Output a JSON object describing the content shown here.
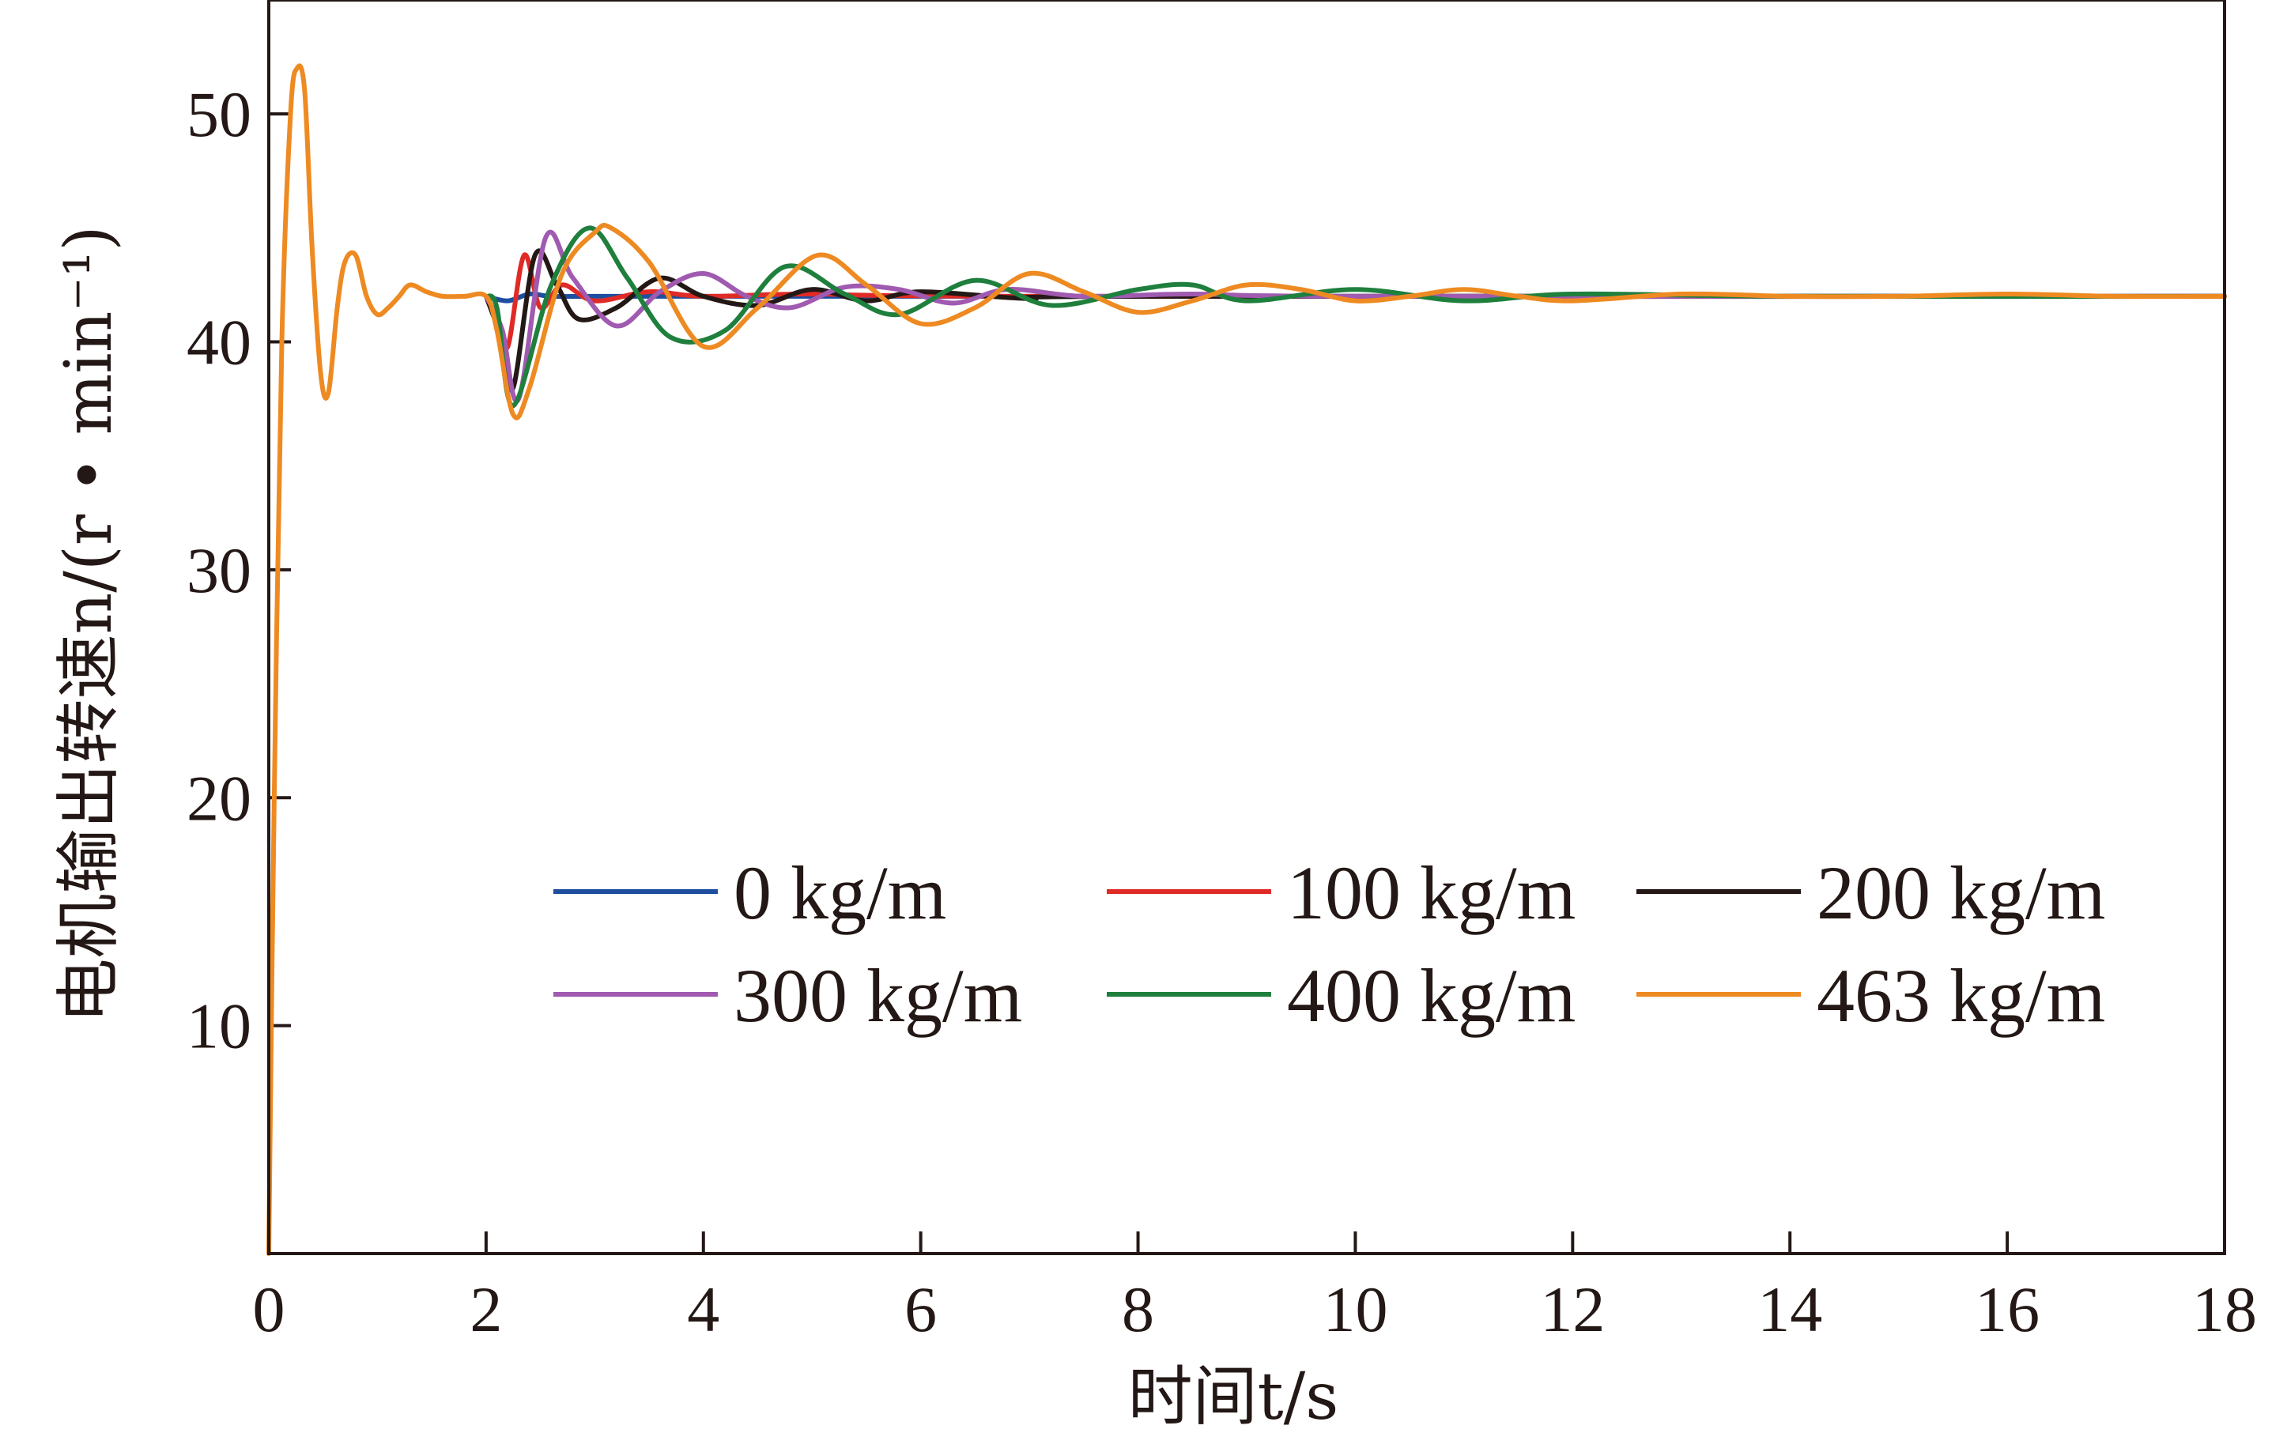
{
  "chart_data": {
    "type": "line",
    "xlabel": "时间t/s",
    "ylabel": "电机输出转速n/(r • min⁻¹)",
    "xlim": [
      0,
      18
    ],
    "ylim": [
      0,
      55
    ],
    "xticks": [
      0,
      2,
      4,
      6,
      8,
      10,
      12,
      14,
      16,
      18
    ],
    "yticks": [
      10,
      20,
      30,
      40,
      50
    ],
    "grid": false,
    "legend_position": "lower-middle, 3 columns",
    "series": [
      {
        "name": "0 kg/m",
        "color": "#1d4ea0",
        "x": [
          2.0,
          2.2,
          2.4,
          2.6,
          3.0,
          4.0,
          6.0,
          10.0,
          18.0
        ],
        "y": [
          42.0,
          41.8,
          42.1,
          42.0,
          42.0,
          42.0,
          42.0,
          42.0,
          42.0
        ]
      },
      {
        "name": "100 kg/m",
        "color": "#e02a26",
        "x": [
          2.0,
          2.1,
          2.2,
          2.35,
          2.5,
          2.7,
          3.0,
          3.5,
          4.0,
          5.0,
          7.0,
          18.0
        ],
        "y": [
          42.0,
          41.0,
          39.8,
          43.8,
          41.5,
          42.5,
          41.8,
          42.2,
          42.0,
          42.1,
          42.0,
          42.0
        ]
      },
      {
        "name": "200 kg/m",
        "color": "#231815",
        "x": [
          2.0,
          2.15,
          2.25,
          2.45,
          2.65,
          2.85,
          3.2,
          3.6,
          4.0,
          4.5,
          5.0,
          5.5,
          6.0,
          7.0,
          8.0,
          18.0
        ],
        "y": [
          42.0,
          40.0,
          38.0,
          43.8,
          42.5,
          41.0,
          41.5,
          42.8,
          42.0,
          41.6,
          42.3,
          41.8,
          42.2,
          41.9,
          42.0,
          42.0
        ]
      },
      {
        "name": "300 kg/m",
        "color": "#a05ab0",
        "x": [
          2.0,
          2.15,
          2.3,
          2.55,
          2.8,
          3.2,
          3.6,
          4.0,
          4.4,
          4.8,
          5.3,
          5.8,
          6.3,
          6.8,
          7.5,
          8.5,
          10.0,
          18.0
        ],
        "y": [
          42.0,
          40.5,
          37.5,
          44.6,
          42.8,
          40.7,
          42.2,
          43.0,
          42.0,
          41.5,
          42.4,
          42.3,
          41.7,
          42.3,
          42.0,
          42.1,
          42.0,
          42.0
        ]
      },
      {
        "name": "400 kg/m",
        "color": "#1f7f3d",
        "x": [
          2.0,
          2.1,
          2.25,
          2.6,
          2.95,
          3.3,
          3.7,
          4.2,
          4.75,
          5.3,
          5.8,
          6.5,
          7.2,
          8.0,
          8.5,
          9.0,
          10.0,
          11.0,
          12.0,
          14.0,
          18.0
        ],
        "y": [
          42.0,
          41.5,
          37.2,
          42.5,
          45.0,
          42.8,
          40.2,
          40.5,
          43.3,
          42.1,
          41.2,
          42.7,
          41.6,
          42.3,
          42.5,
          41.8,
          42.3,
          41.8,
          42.1,
          42.0,
          42.0
        ]
      },
      {
        "name": "463 kg/m",
        "color": "#ee8a22",
        "x": [
          0.0,
          0.05,
          0.12,
          0.2,
          0.26,
          0.33,
          0.4,
          0.48,
          0.55,
          0.63,
          0.7,
          0.8,
          0.9,
          1.0,
          1.1,
          1.2,
          1.3,
          1.45,
          1.6,
          1.8,
          2.0,
          2.1,
          2.25,
          2.4,
          2.7,
          3.0,
          3.15,
          3.5,
          4.0,
          4.5,
          5.05,
          5.5,
          6.0,
          6.5,
          7.0,
          7.5,
          8.0,
          8.5,
          9.0,
          9.5,
          10.0,
          10.5,
          11.0,
          11.5,
          12.0,
          13.0,
          14.0,
          15.0,
          16.0,
          17.0,
          18.0
        ],
        "y": [
          0.0,
          20.0,
          40.0,
          50.0,
          52.0,
          51.0,
          44.0,
          38.5,
          37.8,
          41.5,
          43.5,
          43.8,
          42.0,
          41.2,
          41.5,
          42.0,
          42.5,
          42.2,
          42.0,
          42.0,
          42.0,
          40.5,
          36.8,
          38.0,
          43.0,
          44.8,
          45.0,
          43.5,
          39.8,
          41.5,
          43.8,
          42.5,
          40.8,
          41.5,
          43.0,
          42.2,
          41.3,
          41.8,
          42.5,
          42.3,
          41.8,
          42.0,
          42.3,
          42.0,
          41.8,
          42.1,
          42.0,
          42.0,
          42.1,
          42.0,
          42.0
        ]
      }
    ]
  }
}
